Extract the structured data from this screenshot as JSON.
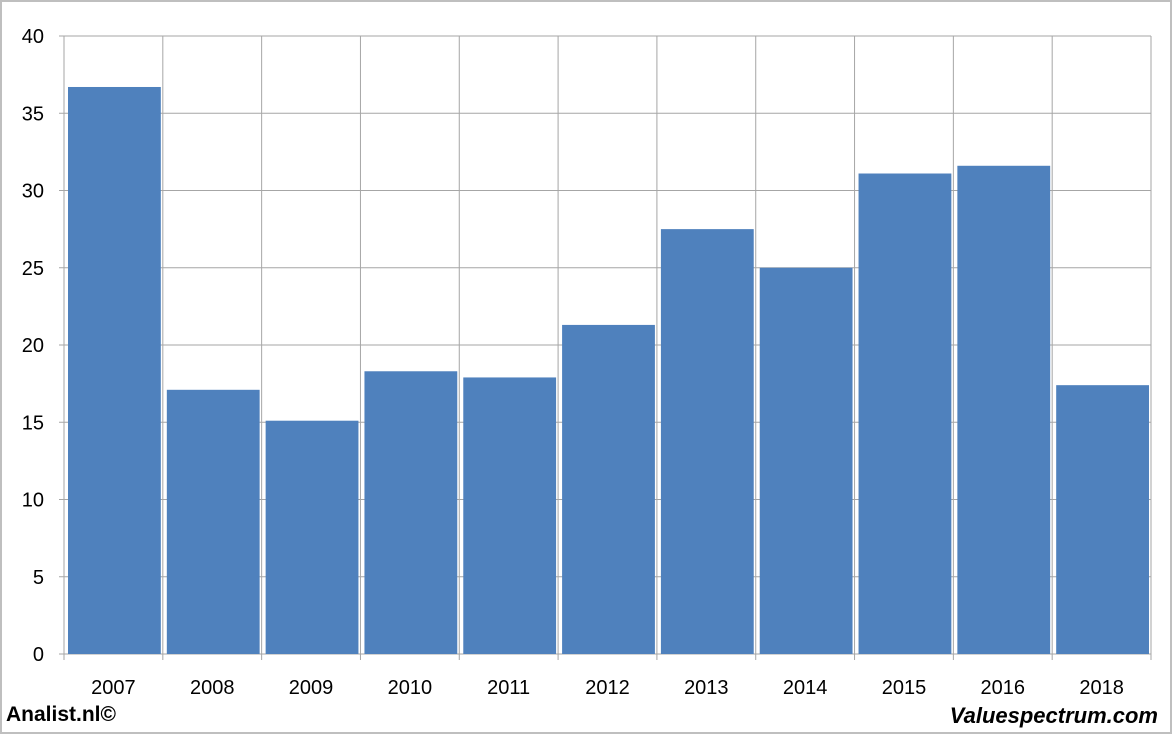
{
  "chart_data": {
    "type": "bar",
    "categories": [
      "2007",
      "2008",
      "2009",
      "2010",
      "2011",
      "2012",
      "2013",
      "2014",
      "2015",
      "2016",
      "2018"
    ],
    "values": [
      36.7,
      17.1,
      15.1,
      18.3,
      17.9,
      21.3,
      27.5,
      25.0,
      31.1,
      31.6,
      17.4
    ],
    "ylim": [
      0,
      40
    ],
    "yticks": [
      0,
      5,
      10,
      15,
      20,
      25,
      30,
      35,
      40
    ],
    "grid": true,
    "bar_color": "#4f81bd",
    "grid_color": "#a6a6a6"
  },
  "footer": {
    "left_text": "Analist.nl©",
    "right_text": "Valuespectrum.com"
  }
}
